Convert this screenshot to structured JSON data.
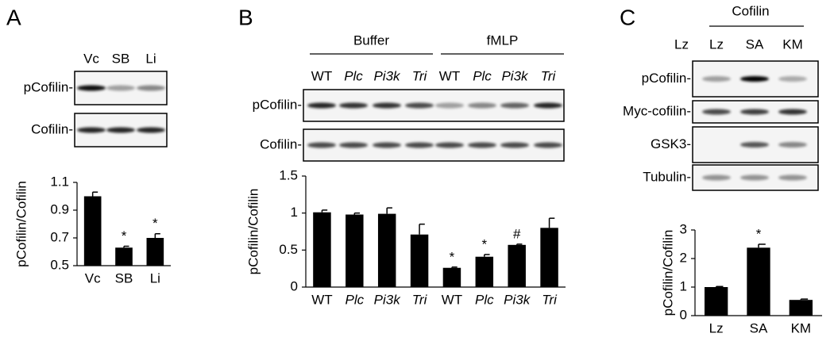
{
  "panels": [
    {
      "letter": "A",
      "lanes": [
        "Vc",
        "SB",
        "Li"
      ],
      "rows": [
        "pCofilin-",
        "Cofilin-"
      ]
    },
    {
      "letter": "B",
      "groups": [
        "Buffer",
        "fMLP"
      ],
      "lanes": [
        "WT",
        "Plc",
        "Pi3k",
        "Tri",
        "WT",
        "Plc",
        "Pi3k",
        "Tri"
      ],
      "rows": [
        "pCofilin-",
        "Cofilin-"
      ]
    },
    {
      "letter": "C",
      "group": "Cofilin",
      "lanes": [
        "Lz",
        "Lz",
        "SA",
        "KM"
      ],
      "rows": [
        "pCofilin-",
        "Myc-cofilin-",
        "GSK3-",
        "Tubulin-"
      ]
    }
  ],
  "chart_data": [
    {
      "type": "bar",
      "y_label": "pCofilin/Cofilin",
      "categories": [
        "Vc",
        "SB",
        "Li"
      ],
      "values": [
        1.0,
        0.63,
        0.7
      ],
      "errors": [
        0.03,
        0.01,
        0.03
      ],
      "annotations": [
        null,
        "*",
        "*"
      ],
      "color": "#000000",
      "ylim": [
        0.5,
        1.1
      ],
      "yticks": [
        0.5,
        0.7,
        0.9,
        1.1
      ]
    },
    {
      "type": "bar",
      "y_label": "pCofilin/Cofilin",
      "categories": [
        "WT",
        "Plc",
        "Pi3k",
        "Tri",
        "WT",
        "Plc",
        "Pi3k",
        "Tri"
      ],
      "values": [
        1.01,
        0.98,
        0.99,
        0.71,
        0.26,
        0.41,
        0.57,
        0.8
      ],
      "errors": [
        0.03,
        0.02,
        0.08,
        0.14,
        0.01,
        0.03,
        0.01,
        0.13
      ],
      "annotations": [
        null,
        null,
        null,
        null,
        "*",
        "*",
        "#",
        null
      ],
      "color": "#000000",
      "ylim": [
        0,
        1.5
      ],
      "yticks": [
        0,
        0.5,
        1,
        1.5
      ]
    },
    {
      "type": "bar",
      "y_label": "pCofilin/Cofilin",
      "categories": [
        "Lz",
        "SA",
        "KM"
      ],
      "values": [
        1.0,
        2.38,
        0.55
      ],
      "errors": [
        0.02,
        0.12,
        0.03
      ],
      "annotations": [
        null,
        "*",
        null
      ],
      "color": "#000000",
      "ylim": [
        0,
        3
      ],
      "yticks": [
        0,
        1,
        2,
        3
      ]
    }
  ]
}
